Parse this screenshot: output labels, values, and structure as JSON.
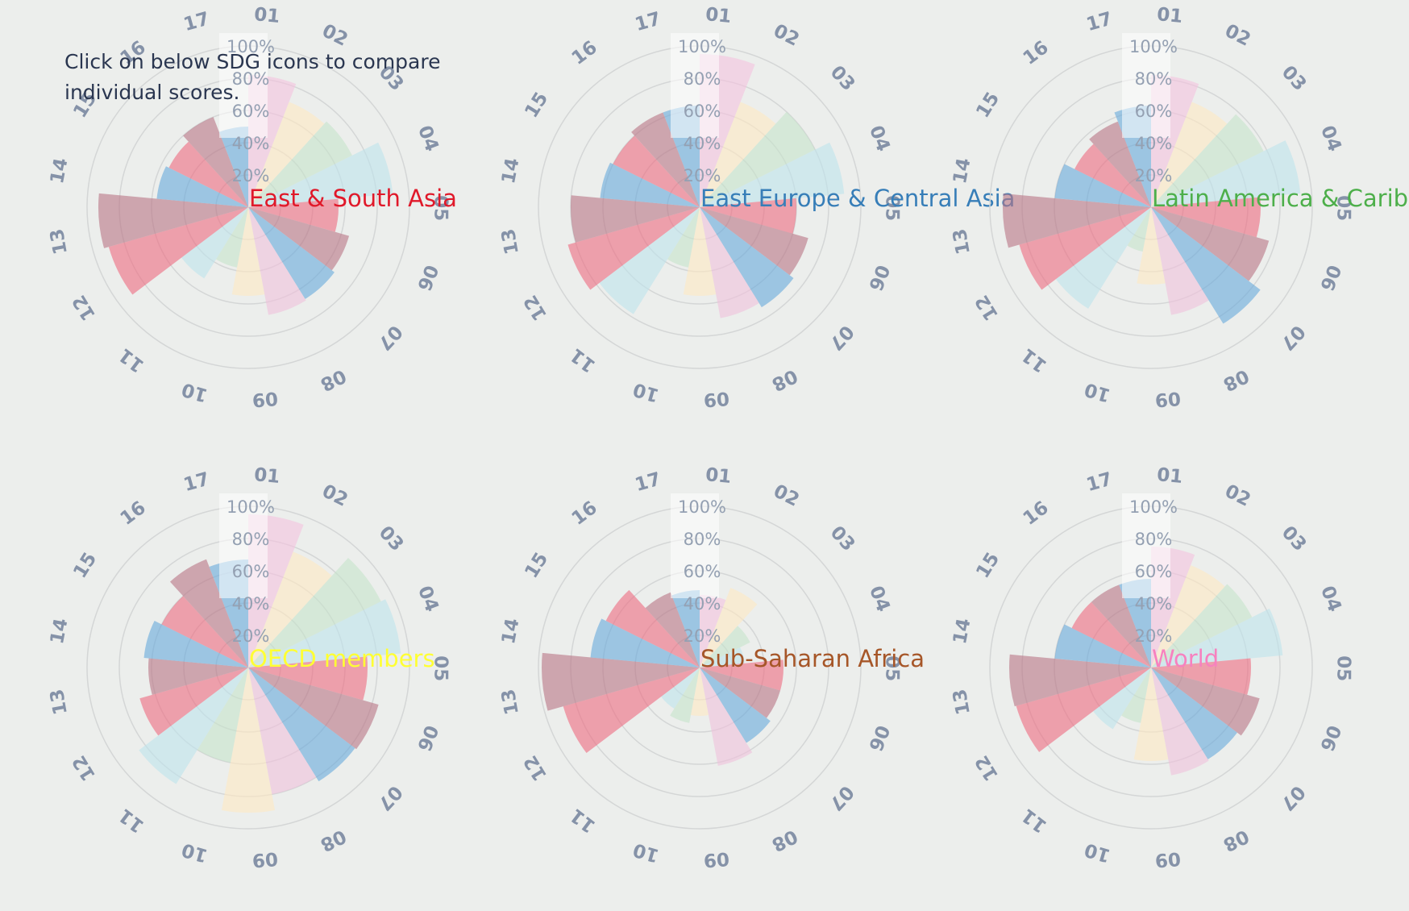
{
  "instruction": "Click on below SDG icons to compare individual scores.",
  "ring_labels": [
    "20%",
    "40%",
    "60%",
    "80%",
    "100%"
  ],
  "sdg_labels": [
    "01",
    "02",
    "03",
    "04",
    "05",
    "06",
    "07",
    "08",
    "09",
    "10",
    "11",
    "12",
    "13",
    "14",
    "15",
    "16",
    "17"
  ],
  "sdg_colors": [
    "#f4c4de",
    "#fde9c4",
    "#c6e3cc",
    "#bee3ec",
    "#ee6e82",
    "#b97888",
    "#6aabdc",
    "#efc2dc",
    "#fde9c4",
    "#c6e3cc",
    "#bee3ec",
    "#ee6e82",
    "#b97888",
    "#6aabdc",
    "#ee6e82",
    "#b97888",
    "#6aabdc"
  ],
  "chart_data": [
    {
      "type": "polar-bar",
      "title": "East & South Asia",
      "title_color": "#e0192a",
      "rmax": 100,
      "categories": [
        "01",
        "02",
        "03",
        "04",
        "05",
        "06",
        "07",
        "08",
        "09",
        "10",
        "11",
        "12",
        "13",
        "14",
        "15",
        "16",
        "17"
      ],
      "values": [
        82,
        70,
        72,
        90,
        56,
        65,
        67,
        68,
        55,
        38,
        52,
        90,
        93,
        57,
        55,
        60,
        50
      ]
    },
    {
      "type": "polar-bar",
      "title": "East Europe & Central Asia",
      "title_color": "#377eb8",
      "rmax": 100,
      "categories": [
        "01",
        "02",
        "03",
        "04",
        "05",
        "06",
        "07",
        "08",
        "09",
        "10",
        "11",
        "12",
        "13",
        "14",
        "15",
        "16",
        "17"
      ],
      "values": [
        95,
        70,
        80,
        90,
        60,
        70,
        73,
        70,
        55,
        38,
        78,
        85,
        80,
        62,
        60,
        63,
        63
      ]
    },
    {
      "type": "polar-bar",
      "title": "Latin America & Caribbean",
      "title_color": "#4daf4a",
      "rmax": 100,
      "categories": [
        "01",
        "02",
        "03",
        "04",
        "05",
        "06",
        "07",
        "08",
        "09",
        "10",
        "11",
        "12",
        "13",
        "14",
        "15",
        "16",
        "17"
      ],
      "values": [
        82,
        70,
        78,
        93,
        68,
        76,
        85,
        68,
        48,
        28,
        74,
        85,
        92,
        60,
        53,
        57,
        63
      ]
    },
    {
      "type": "polar-bar",
      "title": "OECD members",
      "title_color": "#ffff33",
      "rmax": 100,
      "categories": [
        "01",
        "02",
        "03",
        "04",
        "05",
        "06",
        "07",
        "08",
        "09",
        "10",
        "11",
        "12",
        "13",
        "14",
        "15",
        "16",
        "17"
      ],
      "values": [
        95,
        77,
        92,
        95,
        74,
        84,
        83,
        80,
        90,
        60,
        85,
        70,
        62,
        65,
        60,
        72,
        67
      ]
    },
    {
      "type": "polar-bar",
      "title": "Sub-Saharan Africa",
      "title_color": "#a65628",
      "rmax": 100,
      "categories": [
        "01",
        "02",
        "03",
        "04",
        "05",
        "06",
        "07",
        "08",
        "09",
        "10",
        "11",
        "12",
        "13",
        "14",
        "15",
        "16",
        "17"
      ],
      "values": [
        45,
        53,
        35,
        28,
        52,
        52,
        55,
        62,
        30,
        35,
        30,
        88,
        98,
        68,
        65,
        50,
        48
      ]
    },
    {
      "type": "polar-bar",
      "title": "World",
      "title_color": "#f781bf",
      "rmax": 100,
      "categories": [
        "01",
        "02",
        "03",
        "04",
        "05",
        "06",
        "07",
        "08",
        "09",
        "10",
        "11",
        "12",
        "13",
        "14",
        "15",
        "16",
        "17"
      ],
      "values": [
        75,
        68,
        70,
        82,
        62,
        70,
        67,
        68,
        58,
        35,
        45,
        87,
        88,
        60,
        55,
        55,
        55
      ]
    }
  ]
}
